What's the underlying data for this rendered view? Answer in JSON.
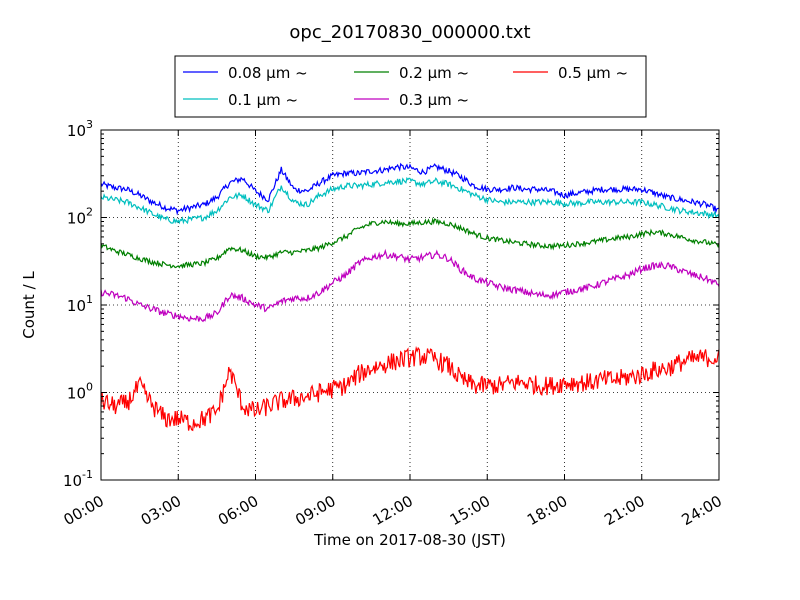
{
  "chart_data": {
    "type": "line",
    "title": "opc_20170830_000000.txt",
    "xlabel": "Time on 2017-08-30 (JST)",
    "ylabel": "Count / L",
    "yscale": "log",
    "ylim": [
      0.1,
      1000
    ],
    "xlim": [
      "00:00",
      "24:00"
    ],
    "x_tick_labels": [
      "00:00",
      "03:00",
      "06:00",
      "09:00",
      "12:00",
      "15:00",
      "18:00",
      "21:00",
      "24:00"
    ],
    "y_tick_labels": [
      {
        "base": "10",
        "exp": "-1"
      },
      {
        "base": "10",
        "exp": "0"
      },
      {
        "base": "10",
        "exp": "1"
      },
      {
        "base": "10",
        "exp": "2"
      },
      {
        "base": "10",
        "exp": "3"
      }
    ],
    "grid": true,
    "legend_position": "top-center",
    "x_hours": [
      0,
      0.5,
      1,
      1.5,
      2,
      2.5,
      3,
      3.5,
      4,
      4.5,
      5,
      5.5,
      6,
      6.5,
      7,
      7.5,
      8,
      8.5,
      9,
      9.5,
      10,
      10.5,
      11,
      11.5,
      12,
      12.5,
      13,
      13.5,
      14,
      14.5,
      15,
      15.5,
      16,
      16.5,
      17,
      17.5,
      18,
      18.5,
      19,
      19.5,
      20,
      20.5,
      21,
      21.5,
      22,
      22.5,
      23,
      23.5,
      24
    ],
    "series": [
      {
        "name": "0.08 μm ~",
        "color": "#0000ff",
        "values": [
          240,
          220,
          210,
          180,
          150,
          130,
          120,
          130,
          140,
          170,
          250,
          280,
          200,
          160,
          350,
          210,
          200,
          250,
          300,
          320,
          320,
          340,
          350,
          380,
          370,
          330,
          380,
          340,
          290,
          230,
          210,
          210,
          220,
          210,
          210,
          200,
          180,
          190,
          200,
          210,
          210,
          210,
          210,
          190,
          170,
          160,
          150,
          140,
          120
        ]
      },
      {
        "name": "0.1 μm ~",
        "color": "#00bfbf",
        "values": [
          170,
          160,
          150,
          130,
          110,
          95,
          90,
          95,
          100,
          120,
          170,
          180,
          140,
          120,
          230,
          150,
          140,
          180,
          210,
          230,
          230,
          240,
          250,
          260,
          260,
          240,
          260,
          240,
          210,
          180,
          160,
          150,
          150,
          150,
          150,
          150,
          145,
          145,
          150,
          150,
          150,
          150,
          150,
          140,
          130,
          120,
          115,
          110,
          105
        ]
      },
      {
        "name": "0.2 μm ~",
        "color": "#008000",
        "values": [
          48,
          42,
          38,
          34,
          31,
          29,
          28,
          29,
          30,
          34,
          45,
          42,
          36,
          35,
          40,
          40,
          42,
          45,
          52,
          60,
          75,
          85,
          90,
          85,
          85,
          88,
          90,
          85,
          75,
          65,
          58,
          55,
          52,
          50,
          48,
          47,
          48,
          50,
          52,
          55,
          58,
          60,
          65,
          68,
          65,
          60,
          55,
          52,
          48
        ]
      },
      {
        "name": "0.3 μm ~",
        "color": "#bf00bf",
        "values": [
          14,
          13,
          12,
          10,
          9,
          8,
          7.5,
          7,
          7,
          8,
          13,
          12,
          10,
          9,
          11,
          12,
          12,
          14,
          18,
          22,
          30,
          35,
          38,
          36,
          33,
          35,
          38,
          34,
          25,
          20,
          18,
          16,
          15,
          14,
          13,
          13,
          14,
          15,
          16,
          18,
          20,
          22,
          26,
          28,
          28,
          25,
          22,
          20,
          17
        ]
      },
      {
        "name": "0.5 μm ~",
        "color": "#ff0000",
        "values": [
          0.8,
          0.7,
          0.75,
          1.2,
          0.7,
          0.5,
          0.5,
          0.45,
          0.5,
          0.6,
          1.8,
          0.7,
          0.6,
          0.7,
          0.8,
          0.85,
          0.9,
          1.0,
          1.1,
          1.2,
          1.6,
          1.9,
          2.1,
          2.3,
          2.5,
          2.6,
          2.4,
          2.0,
          1.4,
          1.2,
          1.2,
          1.2,
          1.3,
          1.3,
          1.2,
          1.2,
          1.3,
          1.3,
          1.3,
          1.4,
          1.4,
          1.5,
          1.6,
          1.8,
          1.9,
          2.2,
          2.4,
          2.5,
          2.5
        ]
      }
    ]
  }
}
